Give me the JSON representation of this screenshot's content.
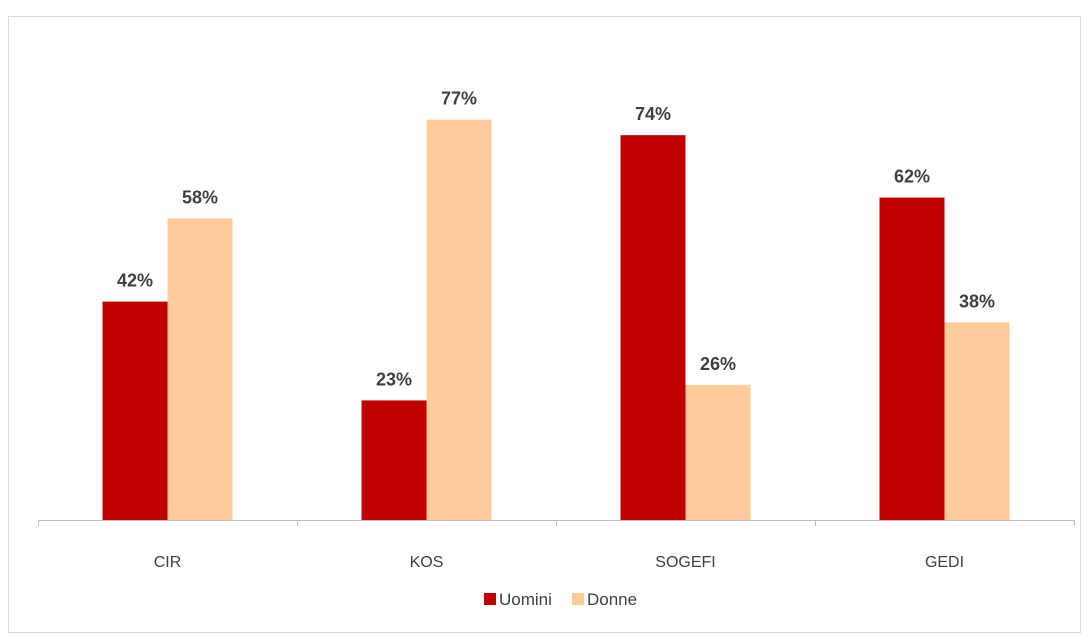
{
  "chart_data": {
    "type": "bar",
    "categories": [
      "CIR",
      "KOS",
      "SOGEFI",
      "GEDI"
    ],
    "series": [
      {
        "name": "Uomini",
        "values": [
          42,
          23,
          74,
          62
        ],
        "labels": [
          "42%",
          "23%",
          "74%",
          "62%"
        ],
        "color": "#c00000"
      },
      {
        "name": "Donne",
        "values": [
          58,
          77,
          26,
          38
        ],
        "labels": [
          "58%",
          "77%",
          "26%",
          "38%"
        ],
        "color": "#ffcc99"
      }
    ],
    "ylim": [
      0,
      100
    ],
    "value_unit": "%",
    "grid": false,
    "legend_position": "bottom",
    "axis_color": "#bfbfbf"
  }
}
